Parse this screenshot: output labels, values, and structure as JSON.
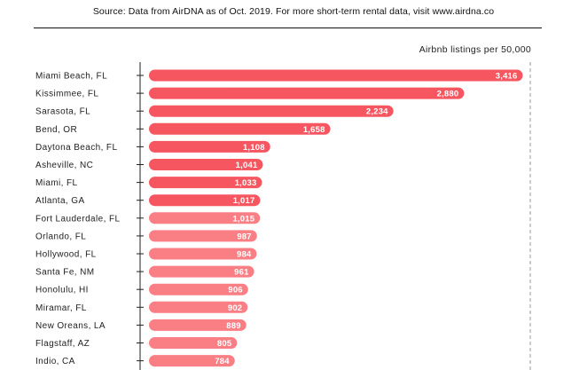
{
  "source_note": "Source: Data from AirDNA as of Oct. 2019. For more short-term rental data, visit www.airdna.co",
  "colors": {
    "bar_strong": "#f5565f",
    "bar_light": "#f97f85",
    "axis": "#222222",
    "dashed": "#999999"
  },
  "chart_data": {
    "type": "bar",
    "orientation": "horizontal",
    "title": "",
    "xlabel": "Airbnb listings per 50,000",
    "ylabel": "",
    "xlim": [
      0,
      3500
    ],
    "grid": false,
    "categories": [
      "Miami Beach, FL",
      "Kissimmee, FL",
      "Sarasota, FL",
      "Bend, OR",
      "Daytona Beach, FL",
      "Asheville, NC",
      "Miami, FL",
      "Atlanta, GA",
      "Fort Lauderdale, FL",
      "Orlando, FL",
      "Hollywood, FL",
      "Santa Fe, NM",
      "Honolulu, HI",
      "Miramar, FL",
      "New Oreans, LA",
      "Flagstaff, AZ",
      "Indio, CA"
    ],
    "values": [
      3416,
      2880,
      2234,
      1658,
      1108,
      1041,
      1033,
      1017,
      1015,
      987,
      984,
      961,
      906,
      902,
      889,
      805,
      784
    ],
    "labels": [
      "3,416",
      "2,880",
      "2,234",
      "1,658",
      "1,108",
      "1,041",
      "1,033",
      "1,017",
      "1,015",
      "987",
      "984",
      "961",
      "906",
      "902",
      "889",
      "805",
      "784"
    ]
  }
}
